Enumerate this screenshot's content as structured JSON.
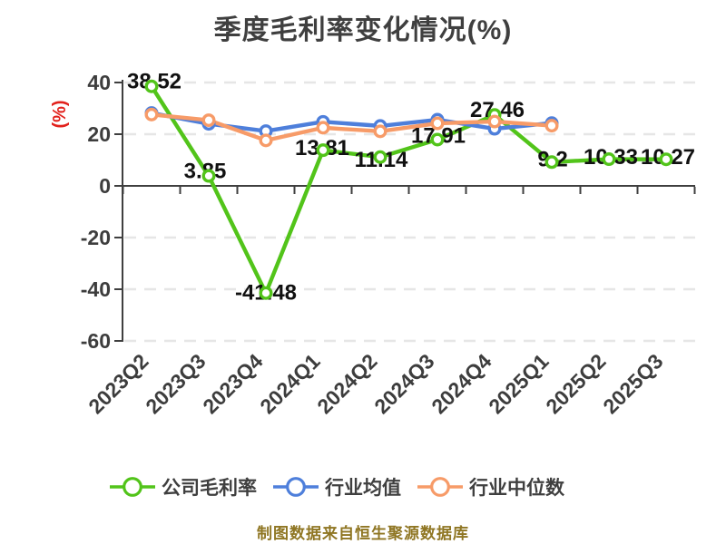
{
  "title": "季度毛利率变化情况(%)",
  "footer": "制图数据来自恒生聚源数据库",
  "colors": {
    "background": "#ffffff",
    "title_text": "#3f3f3f",
    "axis": "#3f3f3f",
    "tick_label": "#3d3d3d",
    "grid": "#e6e6e6",
    "data_label": "#111111",
    "y_axis_name": "#e2211c",
    "legend_text": "#3f3f3f",
    "footer_text": "#8f7623",
    "series_company": "#52c41a",
    "series_industry_avg": "#4e7fdb",
    "series_industry_median": "#f79b68"
  },
  "chart_data": {
    "type": "line",
    "title": "季度毛利率变化情况(%)",
    "y_axis_name": "(%)",
    "xlabel": "",
    "ylabel": "(%)",
    "ylim": [
      -60,
      40
    ],
    "y_ticks": [
      40,
      20,
      0,
      -20,
      -40,
      -60
    ],
    "grid": "horizontal dashed, solid axis line at 0",
    "legend_position": "bottom",
    "marker_style": "white-filled circle with colored ring",
    "categories": [
      "2023Q2",
      "2023Q3",
      "2023Q4",
      "2024Q1",
      "2024Q2",
      "2024Q3",
      "2024Q4",
      "2025Q1",
      "2025Q2",
      "2025Q3"
    ],
    "series": [
      {
        "name": "公司毛利率",
        "color": "#52c41a",
        "values": [
          38.52,
          3.85,
          -41.48,
          13.81,
          11.14,
          17.91,
          27.46,
          9.2,
          10.33,
          10.27
        ],
        "point_labels": [
          "38.52",
          "3.85",
          "-41.48",
          "13.81",
          "11.14",
          "17.91",
          "27.46",
          "9.2",
          "10.33",
          "10.27"
        ]
      },
      {
        "name": "行业均值",
        "color": "#4e7fdb",
        "values": [
          28.2,
          24.0,
          21.2,
          24.8,
          23.2,
          25.6,
          22.1,
          24.3,
          null,
          null
        ],
        "point_labels": null
      },
      {
        "name": "行业中位数",
        "color": "#f79b68",
        "values": [
          27.6,
          25.4,
          17.6,
          22.5,
          21.1,
          24.2,
          24.9,
          23.3,
          null,
          null
        ],
        "point_labels": null
      }
    ]
  }
}
